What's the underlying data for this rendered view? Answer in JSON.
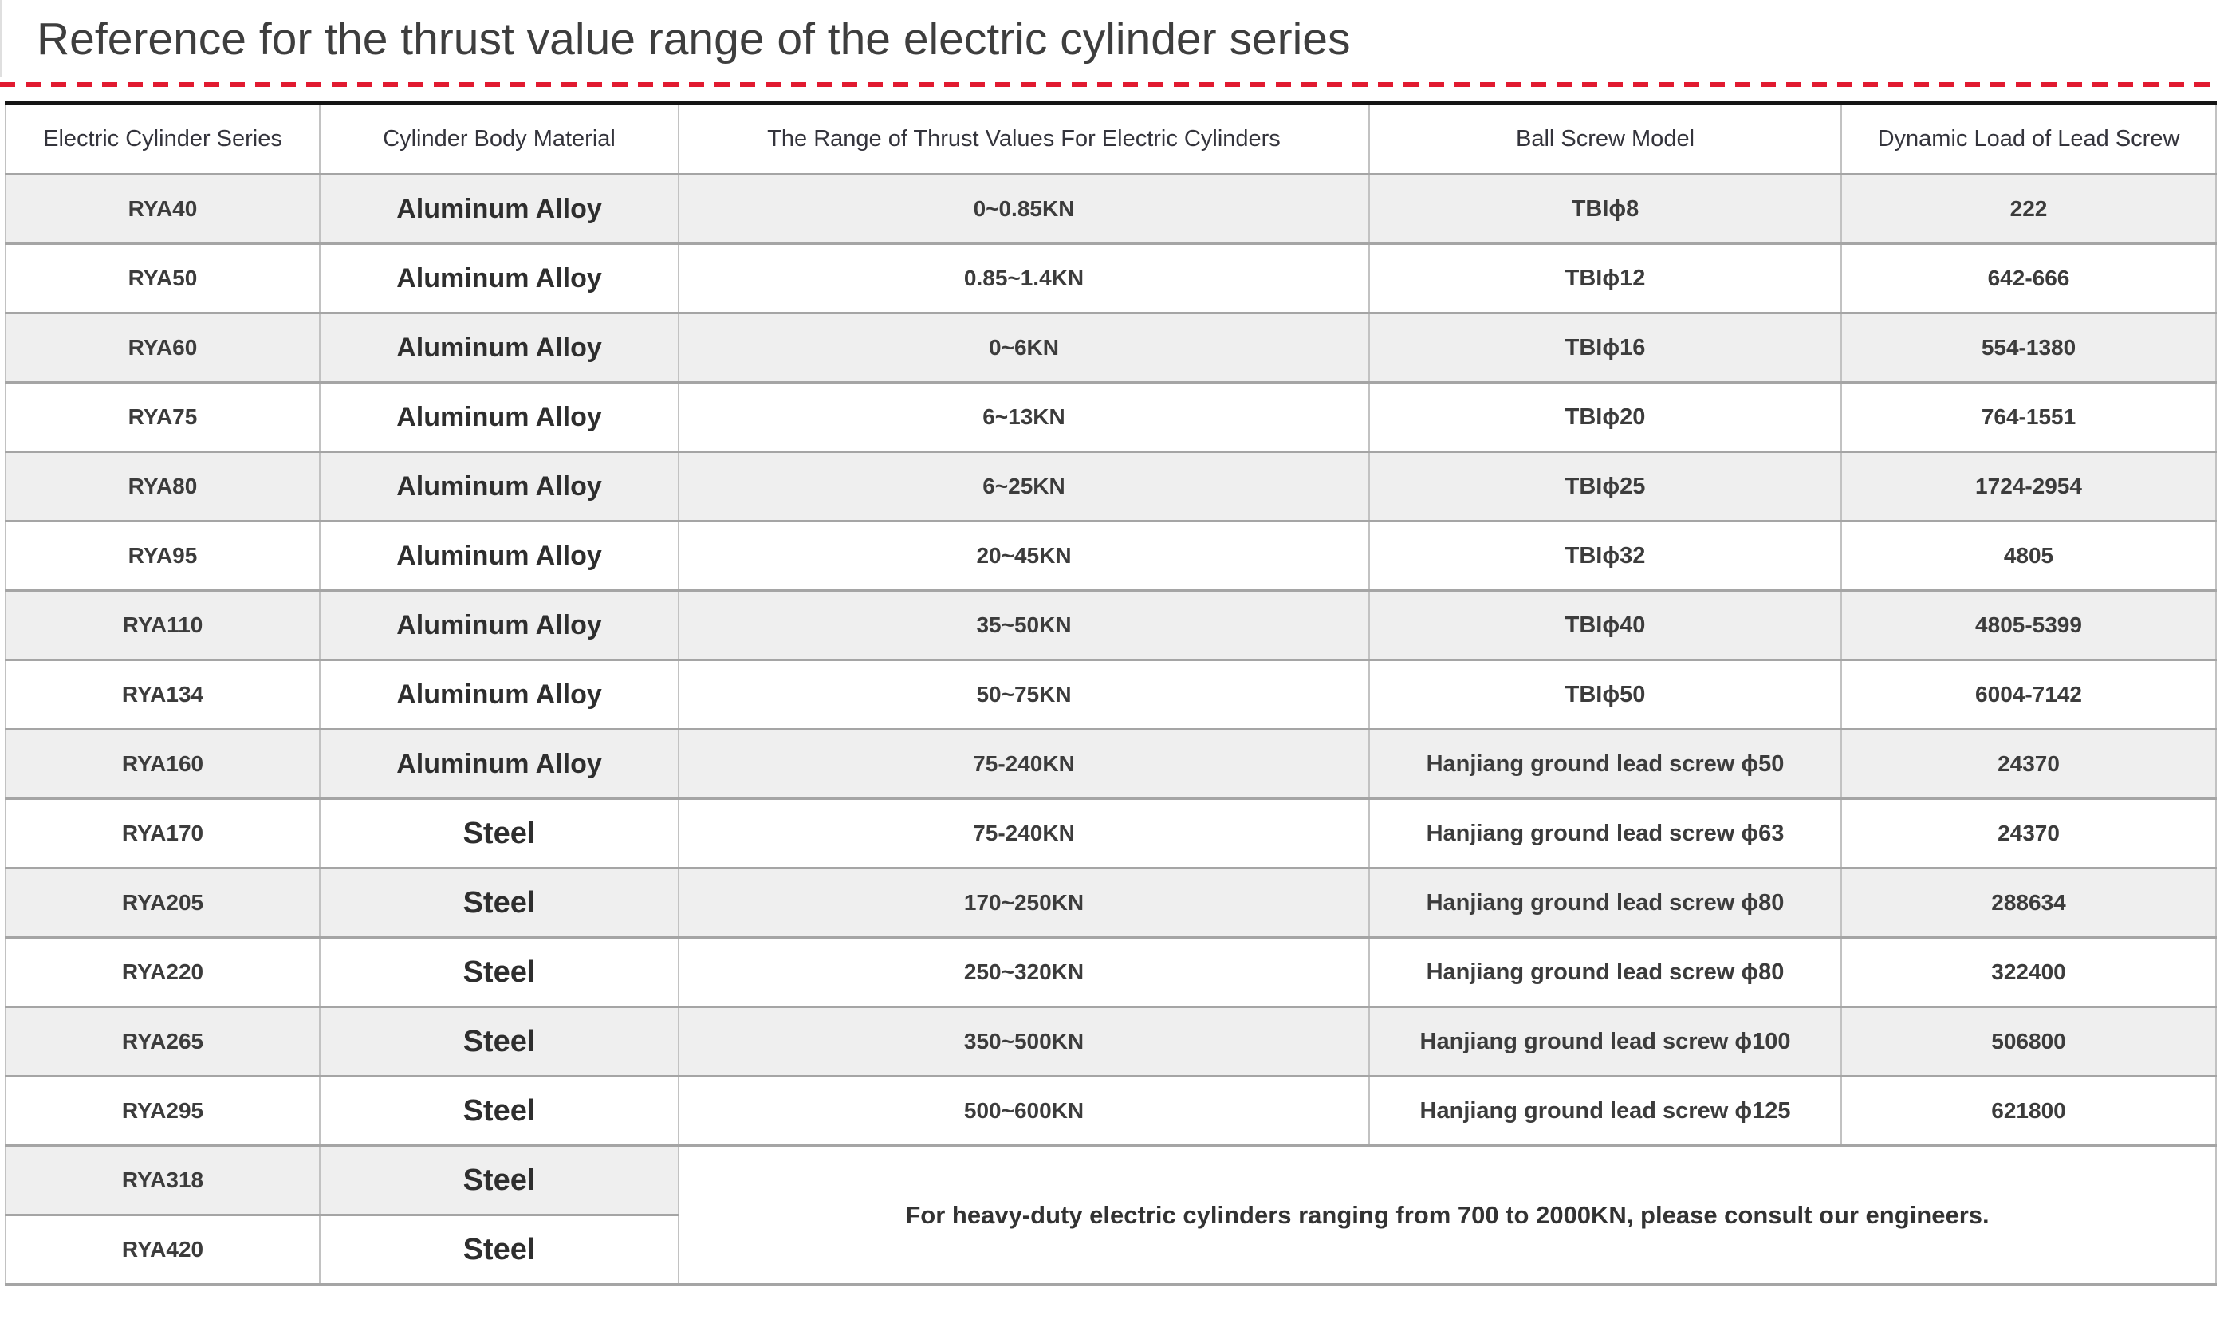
{
  "page": {
    "title": "Reference for the thrust value range of the electric cylinder series"
  },
  "colors": {
    "accent_red": "#e11a30",
    "row_shade": "#efefef",
    "table_top_border": "#151515",
    "grid_line": "#a5a5a5"
  },
  "table": {
    "headers": [
      "Electric Cylinder Series",
      "Cylinder Body Material",
      "The Range of Thrust Values For Electric Cylinders",
      "Ball Screw Model",
      "Dynamic Load of Lead Screw"
    ],
    "rows": [
      {
        "series": "RYA40",
        "material": "Aluminum Alloy",
        "thrust": "0~0.85KN",
        "screw": "TBIϕ8",
        "load": "222"
      },
      {
        "series": "RYA50",
        "material": "Aluminum Alloy",
        "thrust": "0.85~1.4KN",
        "screw": "TBIϕ12",
        "load": "642-666"
      },
      {
        "series": "RYA60",
        "material": "Aluminum Alloy",
        "thrust": "0~6KN",
        "screw": "TBIϕ16",
        "load": "554-1380"
      },
      {
        "series": "RYA75",
        "material": "Aluminum Alloy",
        "thrust": "6~13KN",
        "screw": "TBIϕ20",
        "load": "764-1551"
      },
      {
        "series": "RYA80",
        "material": "Aluminum Alloy",
        "thrust": "6~25KN",
        "screw": "TBIϕ25",
        "load": "1724-2954"
      },
      {
        "series": "RYA95",
        "material": "Aluminum Alloy",
        "thrust": "20~45KN",
        "screw": "TBIϕ32",
        "load": "4805"
      },
      {
        "series": "RYA110",
        "material": "Aluminum Alloy",
        "thrust": "35~50KN",
        "screw": "TBIϕ40",
        "load": "4805-5399"
      },
      {
        "series": "RYA134",
        "material": "Aluminum Alloy",
        "thrust": "50~75KN",
        "screw": "TBIϕ50",
        "load": "6004-7142"
      },
      {
        "series": "RYA160",
        "material": "Aluminum Alloy",
        "thrust": "75-240KN",
        "screw": "Hanjiang ground lead screw ϕ50",
        "load": "24370"
      },
      {
        "series": "RYA170",
        "material": "Steel",
        "thrust": "75-240KN",
        "screw": "Hanjiang ground lead screw ϕ63",
        "load": "24370"
      },
      {
        "series": "RYA205",
        "material": "Steel",
        "thrust": "170~250KN",
        "screw": "Hanjiang ground lead screw ϕ80",
        "load": "288634"
      },
      {
        "series": "RYA220",
        "material": "Steel",
        "thrust": "250~320KN",
        "screw": "Hanjiang ground lead screw ϕ80",
        "load": "322400"
      },
      {
        "series": "RYA265",
        "material": "Steel",
        "thrust": "350~500KN",
        "screw": "Hanjiang ground lead screw ϕ100",
        "load": "506800"
      },
      {
        "series": "RYA295",
        "material": "Steel",
        "thrust": "500~600KN",
        "screw": "Hanjiang ground lead screw ϕ125",
        "load": "621800"
      },
      {
        "series": "RYA318",
        "material": "Steel"
      },
      {
        "series": "RYA420",
        "material": "Steel"
      }
    ],
    "note": "For heavy-duty electric cylinders ranging from 700 to 2000KN, please consult our engineers."
  }
}
